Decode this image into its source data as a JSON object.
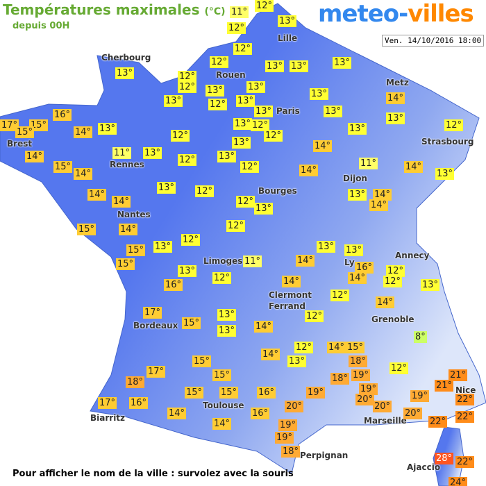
{
  "header": {
    "title": "Températures maximales",
    "unit": "(°C)",
    "subtitle": "depuis 00H",
    "logo_left": "meteo-",
    "logo_right": "villes",
    "date": "Ven. 14/10/2016 18:00"
  },
  "footer": "Pour afficher le nom de la ville : survolez avec la souris",
  "cities": [
    "Cherbourg",
    "Lille",
    "Rouen",
    "Metz",
    "Paris",
    "Brest",
    "Strasbourg",
    "Rennes",
    "Dijon",
    "Bourges",
    "Nantes",
    "Annecy",
    "Ly",
    "Limoges",
    "Clermont",
    "Ferrand",
    "Grenoble",
    "Bordeaux",
    "Nice",
    "Toulouse",
    "Biarritz",
    "Marseille",
    "Perpignan",
    "Ajaccio"
  ],
  "temperatures": [
    "12°",
    "11°",
    "13°",
    "12°",
    "12°",
    "13°",
    "12°",
    "13°",
    "13°",
    "13°",
    "12°",
    "13°",
    "12°",
    "13°",
    "14°",
    "13°",
    "13°",
    "13°",
    "12°",
    "13°",
    "13°",
    "16°",
    "17°",
    "15°",
    "15°",
    "13°",
    "14°",
    "13°",
    "13°",
    "12°",
    "12°",
    "13°",
    "12°",
    "12°",
    "13°",
    "14°",
    "14°",
    "11°",
    "13°",
    "13°",
    "12°",
    "15°",
    "14°",
    "11°",
    "12°",
    "14°",
    "14°",
    "13°",
    "14°",
    "14°",
    "13°",
    "12°",
    "13°",
    "14°",
    "12°",
    "14°",
    "13°",
    "15°",
    "14°",
    "12°",
    "12°",
    "13°",
    "13°",
    "13°",
    "15°",
    "15°",
    "11°",
    "14°",
    "16°",
    "12°",
    "13°",
    "14°",
    "12°",
    "12°",
    "16°",
    "14°",
    "13°",
    "12°",
    "14°",
    "17°",
    "13°",
    "12°",
    "15°",
    "14°",
    "13°",
    "8°",
    "12°",
    "14°",
    "15°",
    "14°",
    "15°",
    "13°",
    "18°",
    "12°",
    "17°",
    "15°",
    "19°",
    "21°",
    "18°",
    "18°",
    "21°",
    "19°",
    "15°",
    "15°",
    "16°",
    "19°",
    "22°",
    "20°",
    "19°",
    "17°",
    "16°",
    "20°",
    "20°",
    "14°",
    "16°",
    "20°",
    "22°",
    "14°",
    "19°",
    "22°",
    "19°",
    "18°",
    "28°",
    "22°",
    "24°"
  ]
}
